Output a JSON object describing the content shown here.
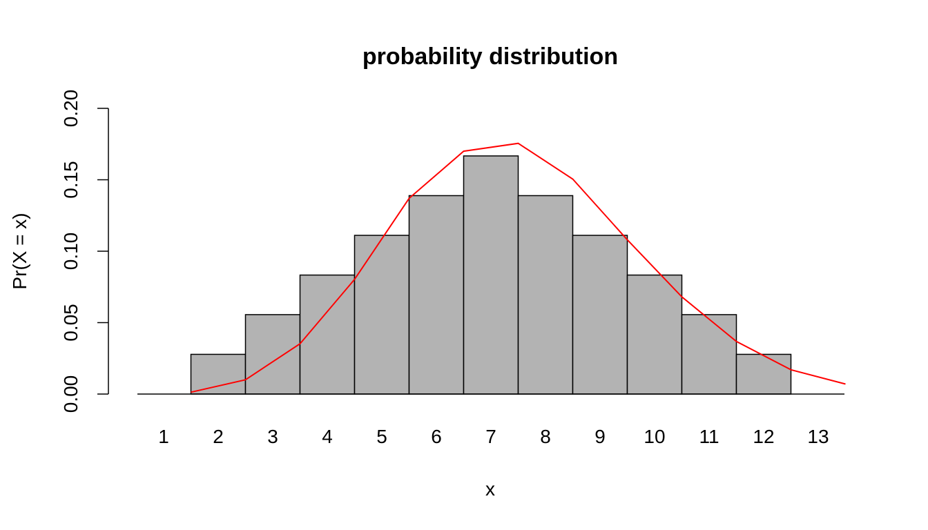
{
  "chart_data": {
    "type": "bar",
    "title": "probability distribution",
    "xlabel": "x",
    "ylabel": "Pr(X = x)",
    "categories": [
      "1",
      "2",
      "3",
      "4",
      "5",
      "6",
      "7",
      "8",
      "9",
      "10",
      "11",
      "12",
      "13"
    ],
    "series": [
      {
        "type": "bar",
        "values": [
          0,
          0.0278,
          0.0556,
          0.0833,
          0.1111,
          0.1389,
          0.1667,
          0.1389,
          0.1111,
          0.0833,
          0.0556,
          0.0278,
          0
        ],
        "color": "#b3b3b3",
        "stroke": "#000000"
      },
      {
        "type": "line",
        "x": [
          1.5,
          2.5,
          3.5,
          4.5,
          5.5,
          6.5,
          7.5,
          8.5,
          9.5,
          10.5,
          11.5,
          12.5,
          13.5
        ],
        "values": [
          0.0013,
          0.01,
          0.0352,
          0.0803,
          0.137,
          0.17,
          0.1755,
          0.1505,
          0.108,
          0.068,
          0.0368,
          0.017,
          0.007
        ],
        "color": "#ff0000"
      }
    ],
    "xlim": [
      1,
      13.5
    ],
    "ylim": [
      0,
      0.2
    ],
    "yticks": [
      "0.00",
      "0.05",
      "0.10",
      "0.15",
      "0.20"
    ],
    "grid": false,
    "legend": "none"
  }
}
